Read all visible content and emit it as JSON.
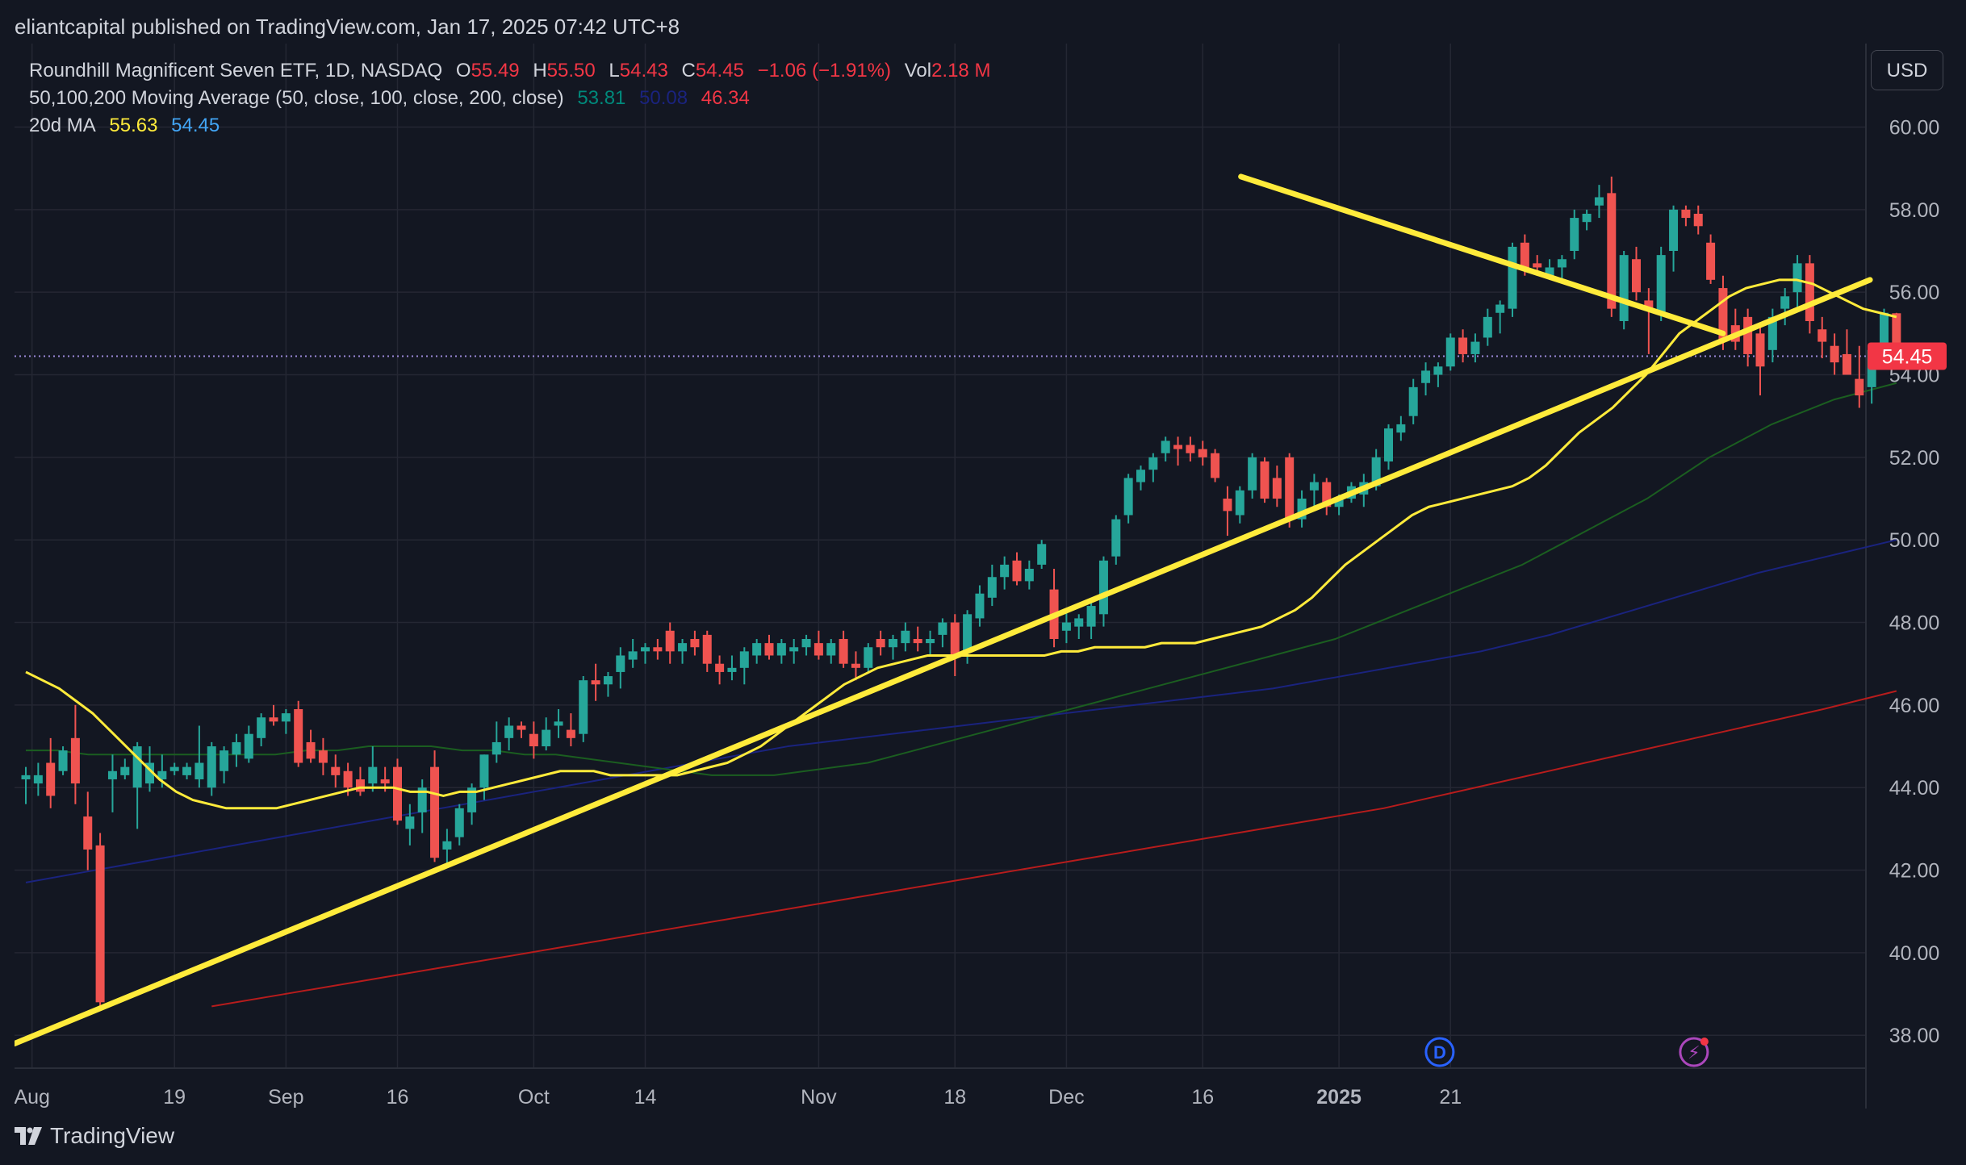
{
  "header": {
    "published": "eliantcapital published on TradingView.com, Jan 17, 2025 07:42 UTC+8"
  },
  "legend": {
    "symbol": "Roundhill Magnificent Seven ETF, 1D, NASDAQ",
    "o_label": "O",
    "o_value": "55.49",
    "h_label": "H",
    "h_value": "55.50",
    "l_label": "L",
    "l_value": "54.43",
    "c_label": "C",
    "c_value": "54.45",
    "change": "−1.06 (−1.91%)",
    "vol_label": "Vol",
    "vol_value": "2.18 M",
    "ma_name": "50,100,200 Moving Average (50, close, 100, close, 200, close)",
    "ma50": "53.81",
    "ma100": "50.08",
    "ma200": "46.34",
    "ma20_name": "20d MA",
    "ma20_a": "55.63",
    "ma20_b": "54.45"
  },
  "currency_button": "USD",
  "footer": {
    "brand": "TradingView"
  },
  "colors": {
    "background": "#131722",
    "grid": "#242733",
    "up": "#26a69a",
    "down": "#ef5350",
    "ma20": "#ffeb3b",
    "ma50": "#1b5e20",
    "ma100": "#1a237e",
    "ma200": "#b71c1c",
    "trendline": "#ffeb3b",
    "price_label_bg": "#f23645"
  },
  "chart_data": {
    "type": "candlestick",
    "title": "Roundhill Magnificent Seven ETF, 1D, NASDAQ",
    "current_price": "54.45",
    "y_ticks": [
      "60.00",
      "58.00",
      "56.00",
      "54.00",
      "52.00",
      "50.00",
      "48.00",
      "46.00",
      "44.00",
      "42.00",
      "40.00",
      "38.00"
    ],
    "ylim": [
      37.6,
      61.0
    ],
    "x_ticks": [
      {
        "label": "Aug",
        "index": 0.5,
        "bold": false
      },
      {
        "label": "19",
        "index": 12,
        "bold": false
      },
      {
        "label": "Sep",
        "index": 21,
        "bold": false
      },
      {
        "label": "16",
        "index": 30,
        "bold": false
      },
      {
        "label": "Oct",
        "index": 41,
        "bold": false
      },
      {
        "label": "14",
        "index": 50,
        "bold": false
      },
      {
        "label": "Nov",
        "index": 64,
        "bold": false
      },
      {
        "label": "18",
        "index": 75,
        "bold": false
      },
      {
        "label": "Dec",
        "index": 84,
        "bold": false
      },
      {
        "label": "16",
        "index": 95,
        "bold": false
      },
      {
        "label": "2025",
        "index": 106,
        "bold": true
      },
      {
        "label": "21",
        "index": 115,
        "bold": false
      }
    ],
    "candles": [
      [
        44.2,
        44.5,
        43.6,
        44.3
      ],
      [
        44.1,
        44.6,
        43.8,
        44.3
      ],
      [
        44.6,
        45.2,
        43.5,
        43.8
      ],
      [
        44.4,
        45.0,
        44.3,
        44.9
      ],
      [
        45.2,
        46.0,
        43.6,
        44.1
      ],
      [
        43.3,
        43.9,
        42.0,
        42.5
      ],
      [
        42.6,
        42.9,
        38.6,
        38.8
      ],
      [
        44.2,
        44.8,
        43.4,
        44.4
      ],
      [
        44.3,
        44.7,
        44.2,
        44.5
      ],
      [
        44.0,
        45.1,
        43.0,
        45.0
      ],
      [
        44.1,
        45.0,
        43.9,
        44.6
      ],
      [
        44.2,
        44.8,
        44.0,
        44.4
      ],
      [
        44.4,
        44.6,
        44.3,
        44.5
      ],
      [
        44.3,
        44.6,
        44.2,
        44.5
      ],
      [
        44.2,
        45.5,
        44.0,
        44.6
      ],
      [
        44.0,
        45.1,
        43.8,
        45.0
      ],
      [
        44.4,
        45.0,
        44.1,
        44.9
      ],
      [
        44.8,
        45.3,
        44.5,
        45.1
      ],
      [
        44.7,
        45.5,
        44.6,
        45.3
      ],
      [
        45.2,
        45.8,
        45.0,
        45.7
      ],
      [
        45.7,
        46.0,
        45.5,
        45.6
      ],
      [
        45.6,
        45.9,
        45.3,
        45.8
      ],
      [
        45.9,
        46.1,
        44.5,
        44.6
      ],
      [
        45.1,
        45.4,
        44.6,
        44.7
      ],
      [
        44.9,
        45.2,
        44.3,
        44.6
      ],
      [
        44.5,
        44.8,
        44.0,
        44.3
      ],
      [
        44.4,
        44.6,
        43.8,
        44.0
      ],
      [
        44.2,
        44.5,
        43.8,
        43.9
      ],
      [
        44.1,
        45.0,
        43.9,
        44.5
      ],
      [
        44.2,
        44.5,
        43.9,
        44.1
      ],
      [
        44.5,
        44.7,
        43.1,
        43.2
      ],
      [
        43.0,
        43.6,
        42.6,
        43.3
      ],
      [
        43.4,
        44.2,
        42.9,
        44.0
      ],
      [
        44.5,
        44.9,
        42.2,
        42.3
      ],
      [
        42.5,
        43.0,
        42.1,
        42.7
      ],
      [
        42.8,
        43.6,
        42.6,
        43.5
      ],
      [
        43.4,
        44.1,
        43.1,
        44.0
      ],
      [
        44.0,
        44.8,
        43.7,
        44.8
      ],
      [
        44.8,
        45.6,
        44.6,
        45.1
      ],
      [
        45.2,
        45.7,
        44.9,
        45.5
      ],
      [
        45.5,
        45.6,
        45.2,
        45.4
      ],
      [
        45.3,
        45.6,
        44.7,
        45.0
      ],
      [
        45.0,
        45.7,
        44.9,
        45.4
      ],
      [
        45.5,
        45.9,
        45.2,
        45.6
      ],
      [
        45.4,
        45.8,
        45.0,
        45.2
      ],
      [
        45.3,
        46.7,
        45.1,
        46.6
      ],
      [
        46.6,
        47.0,
        46.1,
        46.5
      ],
      [
        46.5,
        46.8,
        46.2,
        46.7
      ],
      [
        46.8,
        47.4,
        46.4,
        47.2
      ],
      [
        47.1,
        47.6,
        46.9,
        47.3
      ],
      [
        47.3,
        47.5,
        47.0,
        47.4
      ],
      [
        47.4,
        47.6,
        47.1,
        47.3
      ],
      [
        47.8,
        48.0,
        47.0,
        47.3
      ],
      [
        47.3,
        47.6,
        47.0,
        47.5
      ],
      [
        47.6,
        47.8,
        47.2,
        47.4
      ],
      [
        47.7,
        47.8,
        46.8,
        47.0
      ],
      [
        47.0,
        47.2,
        46.5,
        46.8
      ],
      [
        46.8,
        47.2,
        46.6,
        46.9
      ],
      [
        46.9,
        47.4,
        46.5,
        47.3
      ],
      [
        47.2,
        47.6,
        47.0,
        47.5
      ],
      [
        47.5,
        47.7,
        47.1,
        47.2
      ],
      [
        47.2,
        47.6,
        47.0,
        47.5
      ],
      [
        47.3,
        47.6,
        47.0,
        47.4
      ],
      [
        47.4,
        47.7,
        47.2,
        47.6
      ],
      [
        47.5,
        47.8,
        47.1,
        47.2
      ],
      [
        47.2,
        47.6,
        47.0,
        47.5
      ],
      [
        47.6,
        47.8,
        46.9,
        47.0
      ],
      [
        47.0,
        47.3,
        46.6,
        46.9
      ],
      [
        46.9,
        47.5,
        46.8,
        47.4
      ],
      [
        47.6,
        47.8,
        47.2,
        47.4
      ],
      [
        47.4,
        47.7,
        47.1,
        47.6
      ],
      [
        47.5,
        48.0,
        47.3,
        47.8
      ],
      [
        47.6,
        47.9,
        47.3,
        47.5
      ],
      [
        47.5,
        47.8,
        47.2,
        47.6
      ],
      [
        47.7,
        48.1,
        47.4,
        48.0
      ],
      [
        48.0,
        48.2,
        46.7,
        47.2
      ],
      [
        47.3,
        48.3,
        47.0,
        48.2
      ],
      [
        48.1,
        48.9,
        47.9,
        48.7
      ],
      [
        48.6,
        49.4,
        48.4,
        49.1
      ],
      [
        49.1,
        49.6,
        48.8,
        49.4
      ],
      [
        49.5,
        49.7,
        48.9,
        49.0
      ],
      [
        49.0,
        49.5,
        48.8,
        49.3
      ],
      [
        49.4,
        50.0,
        49.3,
        49.9
      ],
      [
        48.8,
        49.3,
        47.4,
        47.6
      ],
      [
        47.8,
        48.3,
        47.5,
        48.0
      ],
      [
        47.9,
        48.2,
        47.6,
        48.1
      ],
      [
        47.9,
        48.5,
        47.6,
        48.4
      ],
      [
        48.2,
        49.6,
        47.9,
        49.5
      ],
      [
        49.6,
        50.6,
        49.4,
        50.5
      ],
      [
        50.6,
        51.6,
        50.4,
        51.5
      ],
      [
        51.4,
        51.8,
        51.2,
        51.7
      ],
      [
        51.7,
        52.1,
        51.4,
        52.0
      ],
      [
        52.1,
        52.5,
        51.9,
        52.4
      ],
      [
        52.3,
        52.5,
        51.8,
        52.2
      ],
      [
        52.3,
        52.5,
        51.9,
        52.1
      ],
      [
        52.2,
        52.4,
        51.8,
        52.0
      ],
      [
        52.1,
        52.2,
        51.4,
        51.5
      ],
      [
        51.0,
        51.3,
        50.1,
        50.7
      ],
      [
        50.6,
        51.3,
        50.4,
        51.2
      ],
      [
        51.2,
        52.1,
        51.0,
        52.0
      ],
      [
        51.9,
        52.0,
        50.9,
        51.0
      ],
      [
        51.5,
        51.8,
        50.8,
        51.0
      ],
      [
        52.0,
        52.1,
        50.3,
        50.5
      ],
      [
        50.5,
        51.2,
        50.3,
        51.0
      ],
      [
        51.2,
        51.6,
        50.8,
        51.4
      ],
      [
        51.4,
        51.5,
        50.6,
        50.8
      ],
      [
        50.8,
        51.1,
        50.6,
        51.0
      ],
      [
        51.0,
        51.4,
        50.9,
        51.3
      ],
      [
        51.1,
        51.6,
        50.8,
        51.4
      ],
      [
        51.3,
        52.2,
        51.2,
        52.0
      ],
      [
        51.9,
        52.8,
        51.7,
        52.7
      ],
      [
        52.6,
        53.0,
        52.4,
        52.8
      ],
      [
        53.0,
        53.9,
        52.8,
        53.7
      ],
      [
        53.8,
        54.3,
        53.5,
        54.1
      ],
      [
        54.0,
        54.3,
        53.7,
        54.2
      ],
      [
        54.2,
        55.0,
        54.1,
        54.9
      ],
      [
        54.9,
        55.1,
        54.3,
        54.5
      ],
      [
        54.5,
        55.0,
        54.3,
        54.8
      ],
      [
        54.9,
        55.6,
        54.7,
        55.4
      ],
      [
        55.5,
        55.8,
        55.0,
        55.7
      ],
      [
        55.6,
        57.2,
        55.4,
        57.1
      ],
      [
        57.2,
        57.4,
        56.4,
        56.6
      ],
      [
        56.7,
        56.9,
        56.4,
        56.6
      ],
      [
        56.4,
        56.8,
        56.3,
        56.6
      ],
      [
        56.6,
        56.9,
        56.3,
        56.8
      ],
      [
        57.0,
        58.0,
        56.8,
        57.8
      ],
      [
        57.7,
        58.0,
        57.5,
        57.9
      ],
      [
        58.1,
        58.6,
        57.8,
        58.3
      ],
      [
        58.4,
        58.8,
        55.4,
        55.6
      ],
      [
        55.3,
        57.0,
        55.1,
        56.9
      ],
      [
        56.8,
        57.1,
        55.8,
        56.0
      ],
      [
        55.8,
        56.1,
        54.5,
        55.6
      ],
      [
        55.5,
        57.1,
        55.3,
        56.9
      ],
      [
        57.0,
        58.1,
        56.5,
        58.0
      ],
      [
        58.0,
        58.1,
        57.6,
        57.8
      ],
      [
        57.9,
        58.1,
        57.4,
        57.6
      ],
      [
        57.2,
        57.4,
        56.2,
        56.3
      ],
      [
        56.1,
        56.4,
        54.6,
        54.8
      ],
      [
        55.2,
        55.6,
        54.6,
        54.8
      ],
      [
        55.4,
        55.6,
        54.2,
        54.5
      ],
      [
        55.0,
        55.2,
        53.5,
        54.2
      ],
      [
        54.6,
        55.6,
        54.3,
        55.4
      ],
      [
        55.6,
        56.1,
        55.2,
        55.9
      ],
      [
        56.0,
        56.9,
        55.6,
        56.7
      ],
      [
        56.7,
        56.9,
        55.0,
        55.3
      ],
      [
        55.1,
        55.4,
        54.4,
        54.8
      ],
      [
        54.7,
        55.0,
        54.0,
        54.3
      ],
      [
        54.5,
        55.1,
        54.1,
        54.0
      ],
      [
        53.9,
        54.7,
        53.2,
        53.5
      ],
      [
        53.7,
        54.5,
        53.3,
        54.6
      ],
      [
        54.6,
        55.6,
        54.4,
        55.5
      ],
      [
        55.49,
        55.5,
        54.43,
        54.45
      ]
    ],
    "ma20": [
      46.8,
      46.6,
      46.4,
      46.1,
      45.8,
      45.4,
      45.0,
      44.6,
      44.2,
      43.9,
      43.7,
      43.6,
      43.5,
      43.5,
      43.5,
      43.5,
      43.6,
      43.7,
      43.8,
      43.9,
      44.0,
      44.0,
      44.0,
      43.9,
      43.9,
      43.8,
      43.9,
      43.9,
      44.0,
      44.1,
      44.2,
      44.3,
      44.4,
      44.4,
      44.4,
      44.3,
      44.3,
      44.3,
      44.3,
      44.3,
      44.4,
      44.5,
      44.6,
      44.8,
      45.0,
      45.3,
      45.6,
      45.9,
      46.2,
      46.5,
      46.7,
      46.9,
      47.0,
      47.1,
      47.2,
      47.2,
      47.2,
      47.2,
      47.2,
      47.2,
      47.2,
      47.2,
      47.3,
      47.3,
      47.4,
      47.4,
      47.4,
      47.4,
      47.5,
      47.5,
      47.5,
      47.6,
      47.7,
      47.8,
      47.9,
      48.1,
      48.3,
      48.6,
      49.0,
      49.4,
      49.7,
      50.0,
      50.3,
      50.6,
      50.8,
      50.9,
      51.0,
      51.1,
      51.2,
      51.3,
      51.5,
      51.8,
      52.2,
      52.6,
      52.9,
      53.2,
      53.6,
      54.0,
      54.5,
      55.0,
      55.3,
      55.6,
      55.9,
      56.1,
      56.2,
      56.3,
      56.3,
      56.2,
      56.0,
      55.8,
      55.6,
      55.5,
      55.4
    ],
    "ma20_start": 0,
    "ma50": [
      44.9,
      44.9,
      44.8,
      44.8,
      44.8,
      44.8,
      44.8,
      44.8,
      44.8,
      44.9,
      44.9,
      45.0,
      45.0,
      45.0,
      44.9,
      44.9,
      44.8,
      44.8,
      44.7,
      44.6,
      44.5,
      44.4,
      44.3,
      44.3,
      44.3,
      44.4,
      44.5,
      44.6,
      44.8,
      45.0,
      45.2,
      45.4,
      45.6,
      45.8,
      46.0,
      46.2,
      46.4,
      46.6,
      46.8,
      47.0,
      47.2,
      47.4,
      47.6,
      47.9,
      48.2,
      48.5,
      48.8,
      49.1,
      49.4,
      49.8,
      50.2,
      50.6,
      51.0,
      51.5,
      52.0,
      52.4,
      52.8,
      53.1,
      53.4,
      53.6,
      53.8
    ],
    "ma50_start": 0,
    "ma100": [
      41.7,
      42.0,
      42.3,
      42.6,
      42.9,
      43.2,
      43.5,
      43.8,
      44.1,
      44.4,
      44.7,
      45.0,
      45.2,
      45.4,
      45.6,
      45.8,
      46.0,
      46.2,
      46.4,
      46.7,
      47.0,
      47.3,
      47.7,
      48.2,
      48.7,
      49.2,
      49.6,
      50.0
    ],
    "ma100_start": 0,
    "ma200": [
      38.7,
      39.0,
      39.3,
      39.6,
      39.9,
      40.2,
      40.5,
      40.8,
      41.1,
      41.4,
      41.7,
      42.0,
      42.3,
      42.6,
      42.9,
      43.2,
      43.5,
      43.9,
      44.3,
      44.7,
      45.1,
      45.5,
      45.9,
      46.34
    ],
    "ma200_start": 15,
    "trendlines": [
      {
        "from_index": 0,
        "from_value": 37.8,
        "to_index": 143,
        "to_value": 55.6
      },
      {
        "from_index": 99,
        "from_value": 58.8,
        "to_index": 137,
        "to_value": 55.0
      }
    ],
    "markers": [
      {
        "name": "dividend",
        "symbol": "D",
        "index": 114
      },
      {
        "name": "earnings",
        "symbol": "⚡",
        "index": 134
      }
    ]
  }
}
